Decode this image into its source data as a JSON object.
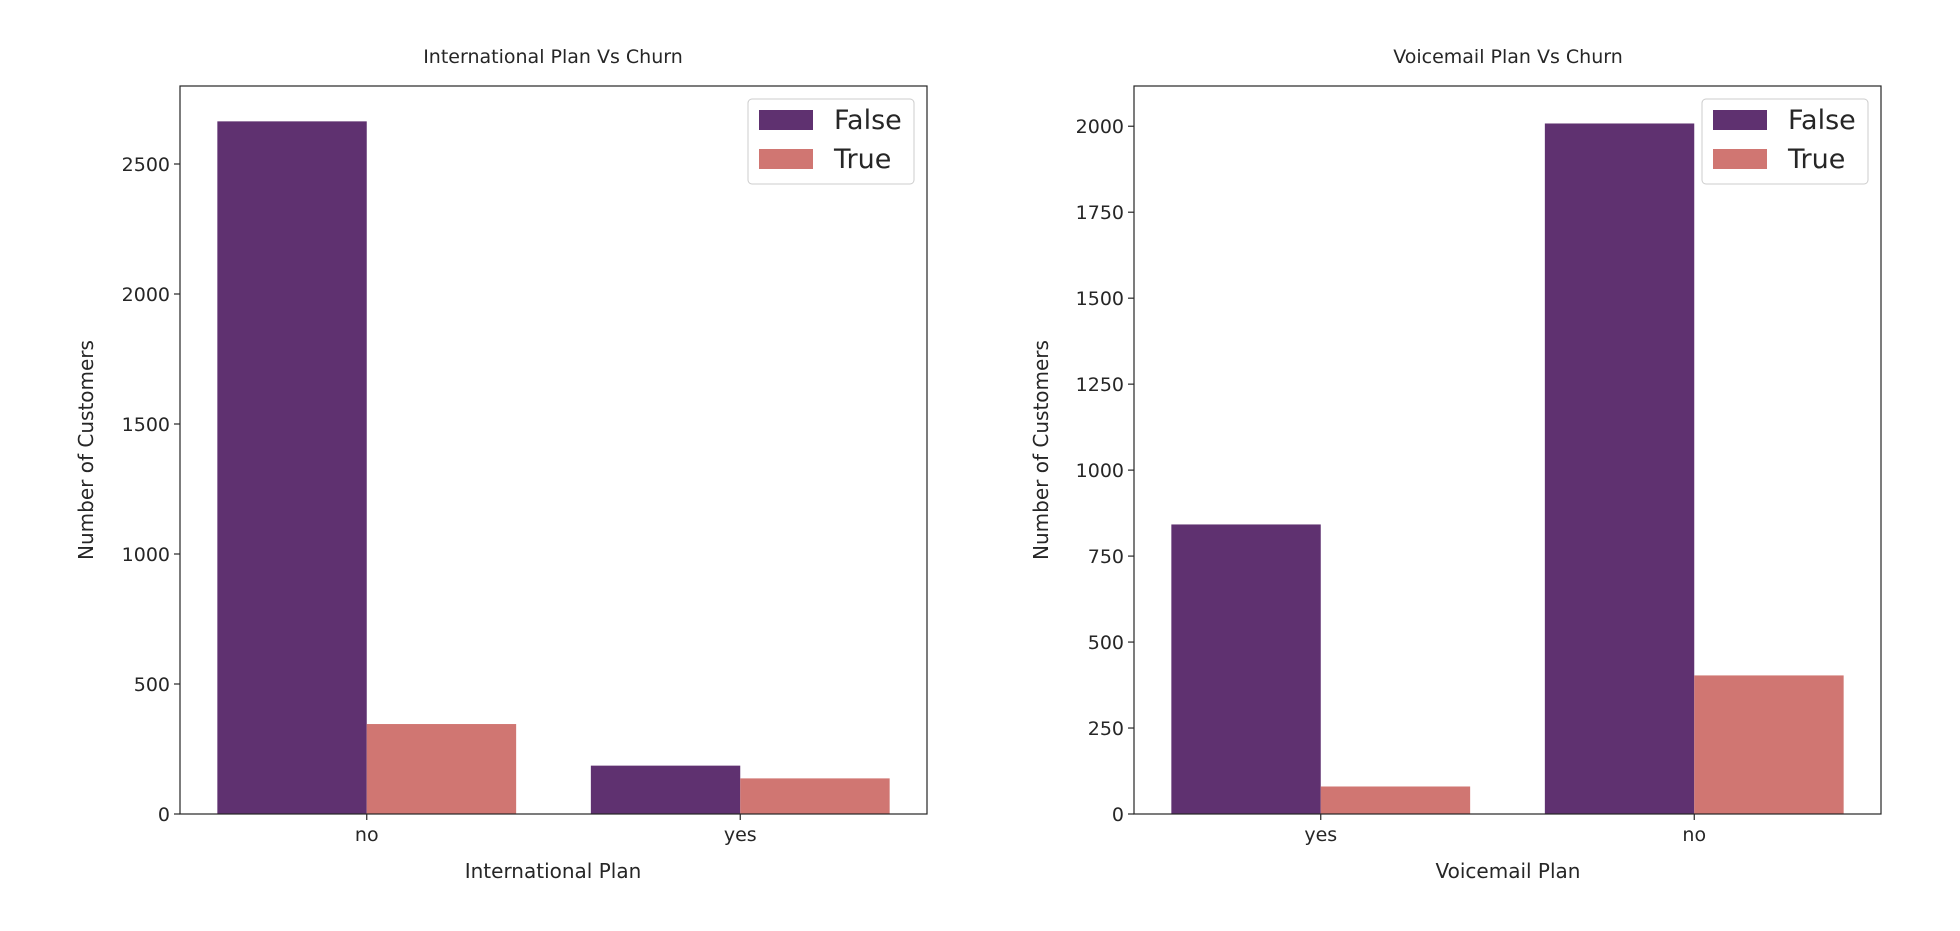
{
  "chart_data": [
    {
      "type": "bar",
      "title": "International Plan Vs Churn",
      "xlabel": "International Plan",
      "ylabel": "Number of Customers",
      "categories": [
        "no",
        "yes"
      ],
      "series": [
        {
          "name": "False",
          "values": [
            2664,
            186
          ],
          "color": "#5f3170"
        },
        {
          "name": "True",
          "values": [
            346,
            137
          ],
          "color": "#d07672"
        }
      ],
      "ylim": [
        0,
        2800
      ],
      "yticks": [
        0,
        500,
        1000,
        1500,
        2000,
        2500
      ],
      "legend": "top-right",
      "grid": false
    },
    {
      "type": "bar",
      "title": "Voicemail Plan Vs Churn",
      "xlabel": "Voicemail Plan",
      "ylabel": "Number of Customers",
      "categories": [
        "yes",
        "no"
      ],
      "series": [
        {
          "name": "False",
          "values": [
            842,
            2008
          ],
          "color": "#5f3170"
        },
        {
          "name": "True",
          "values": [
            80,
            403
          ],
          "color": "#d07672"
        }
      ],
      "ylim": [
        0,
        2117
      ],
      "yticks": [
        0,
        250,
        500,
        750,
        1000,
        1250,
        1500,
        1750,
        2000
      ],
      "legend": "top-right",
      "grid": false
    }
  ]
}
